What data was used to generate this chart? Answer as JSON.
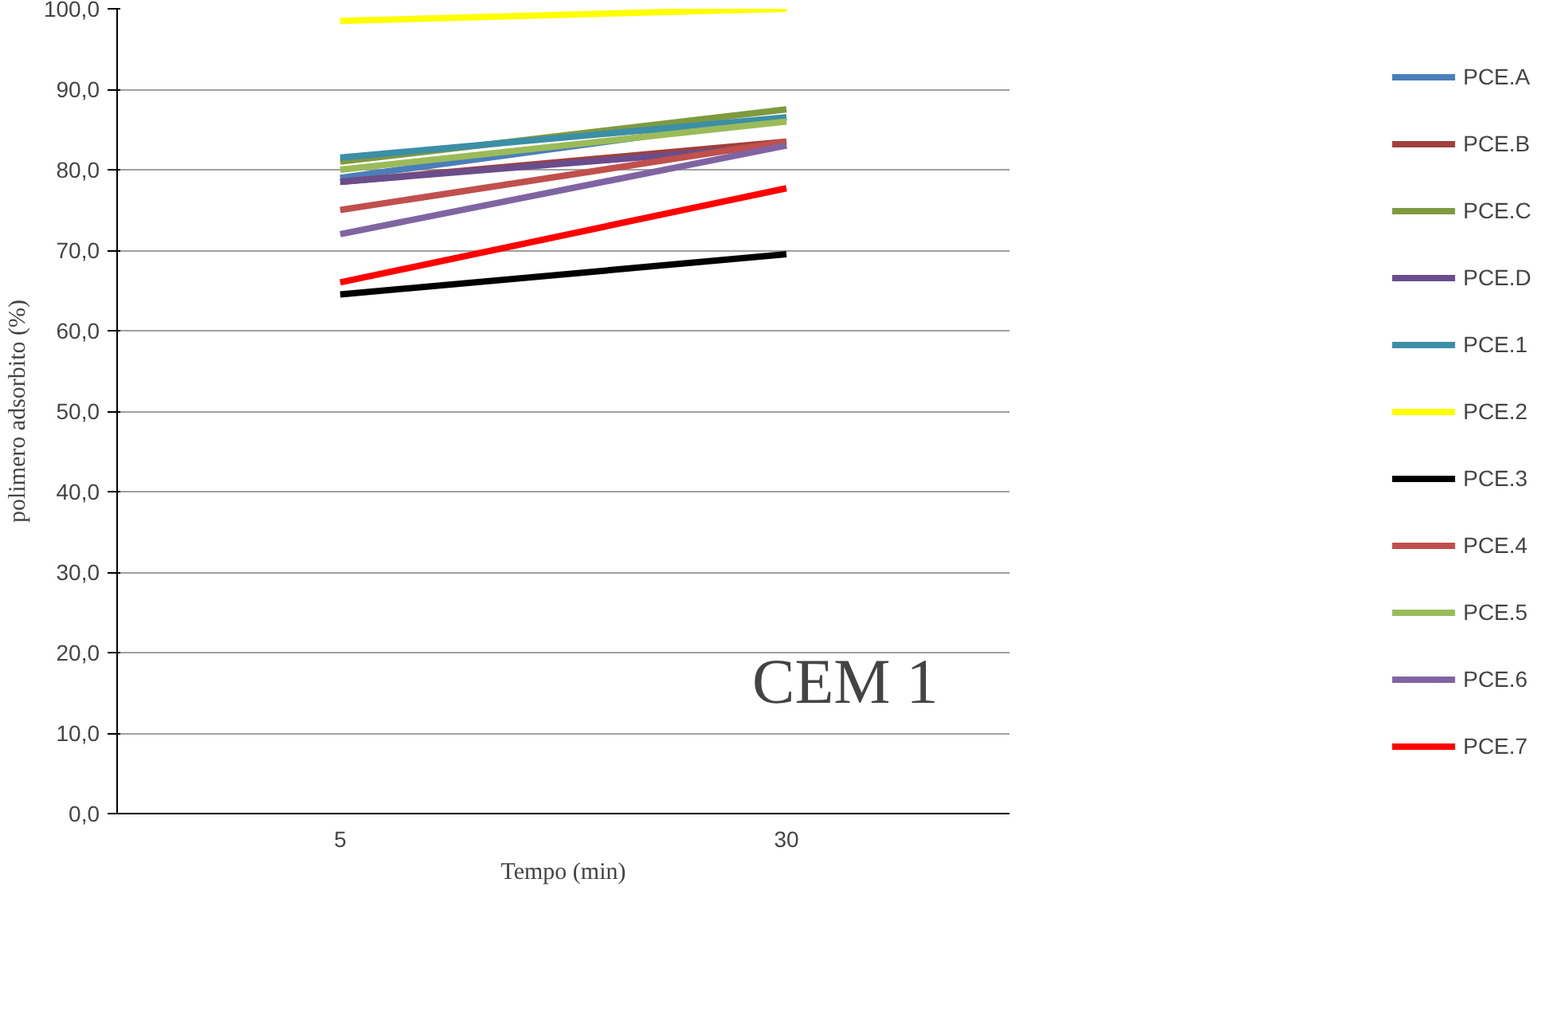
{
  "chart_data": {
    "type": "line",
    "xlabel": "Tempo (min)",
    "ylabel": "polimero adsorbito (%)",
    "categories": [
      "5",
      "30"
    ],
    "ylim": [
      0,
      100
    ],
    "yticks": [
      {
        "value": 0,
        "label": "0,0"
      },
      {
        "value": 10,
        "label": "10,0"
      },
      {
        "value": 20,
        "label": "20,0"
      },
      {
        "value": 30,
        "label": "30,0"
      },
      {
        "value": 40,
        "label": "40,0"
      },
      {
        "value": 50,
        "label": "50,0"
      },
      {
        "value": 60,
        "label": "60,0"
      },
      {
        "value": 70,
        "label": "70,0"
      },
      {
        "value": 80,
        "label": "80,0"
      },
      {
        "value": 90,
        "label": "90,0"
      },
      {
        "value": 100,
        "label": "100,0"
      }
    ],
    "grid": "y",
    "legend": "right",
    "marker": "none",
    "line_style": "solid",
    "annotations": [
      "CEM 1"
    ],
    "series": [
      {
        "name": "PCE.A",
        "color": "#4a7ebb",
        "values": [
          79,
          86.5
        ]
      },
      {
        "name": "PCE.B",
        "color": "#a0403c",
        "values": [
          78.5,
          83.5
        ]
      },
      {
        "name": "PCE.C",
        "color": "#7e9a3f",
        "values": [
          81,
          87.5
        ]
      },
      {
        "name": "PCE.D",
        "color": "#6a4d8c",
        "values": [
          78.5,
          83
        ]
      },
      {
        "name": "PCE.1",
        "color": "#3b8fa6",
        "values": [
          81.5,
          86.5
        ]
      },
      {
        "name": "PCE.2",
        "color": "#ffff00",
        "values": [
          98.5,
          100
        ]
      },
      {
        "name": "PCE.3",
        "color": "#000000",
        "values": [
          64.5,
          69.5
        ]
      },
      {
        "name": "PCE.4",
        "color": "#c0504d",
        "values": [
          75,
          83.5
        ]
      },
      {
        "name": "PCE.5",
        "color": "#9bbb59",
        "values": [
          80,
          86
        ]
      },
      {
        "name": "PCE.6",
        "color": "#8064a2",
        "values": [
          72,
          83
        ]
      },
      {
        "name": "PCE.7",
        "color": "#ff0000",
        "values": [
          66,
          77.7
        ]
      }
    ]
  }
}
